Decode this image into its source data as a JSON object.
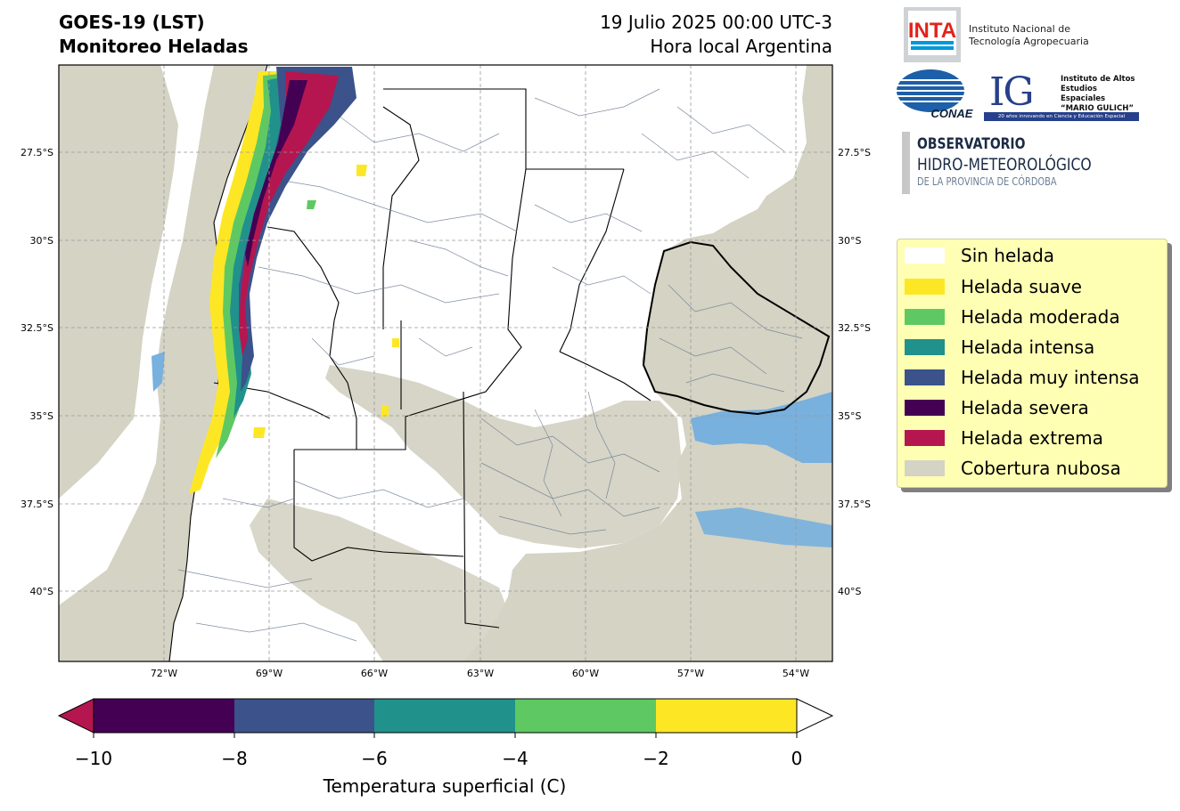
{
  "header": {
    "title_line1": "GOES-19 (LST)",
    "title_line2": "Monitoreo Heladas",
    "date_line1": "19 Julio 2025 00:00 UTC-3",
    "date_line2": "Hora local Argentina"
  },
  "map": {
    "lat_labels": [
      "27.5°S",
      "30°S",
      "32.5°S",
      "35°S",
      "37.5°S",
      "40°S"
    ],
    "lon_labels": [
      "72°W",
      "69°W",
      "66°W",
      "63°W",
      "60°W",
      "57°W",
      "54°W"
    ],
    "colors": {
      "cloud": "#d4d3c4",
      "water": "#78b0de",
      "land": "#ffffff",
      "boundary": "#6b7a90"
    }
  },
  "logos": {
    "inta_badge": "INTA",
    "inta_text_1": "Instituto Nacional de",
    "inta_text_2": "Tecnología Agropecuaria",
    "conae": "CONAE",
    "ig_letters": "IG",
    "ig_text_1": "Instituto de Altos",
    "ig_text_2": "Estudios Espaciales",
    "ig_text_3": "“MARIO GULICH”",
    "ig_footer": "20 años innovando en Ciencia y Educación Espacial",
    "obs_1": "OBSERVATORIO",
    "obs_2": "HIDRO-METEOROLÓGICO",
    "obs_3": "DE LA PROVINCIA DE CÓRDOBA"
  },
  "legend": {
    "items": [
      {
        "label": "Sin helada",
        "color": "#ffffff"
      },
      {
        "label": "Helada suave",
        "color": "#fde725"
      },
      {
        "label": "Helada moderada",
        "color": "#5ec962"
      },
      {
        "label": "Helada intensa",
        "color": "#21918c"
      },
      {
        "label": "Helada muy intensa",
        "color": "#3b528b"
      },
      {
        "label": "Helada severa",
        "color": "#440154"
      },
      {
        "label": "Helada extrema",
        "color": "#b5164f"
      },
      {
        "label": "Cobertura nubosa",
        "color": "#d4d3c4"
      }
    ]
  },
  "colorbar": {
    "label": "Temperatura superficial (C)",
    "ticks": [
      "−10",
      "−8",
      "−6",
      "−4",
      "−2",
      "0"
    ],
    "segments": [
      "#440154",
      "#3b528b",
      "#21918c",
      "#5ec962",
      "#fde725"
    ],
    "under_color": "#b5164f",
    "over_color": "#ffffff"
  }
}
